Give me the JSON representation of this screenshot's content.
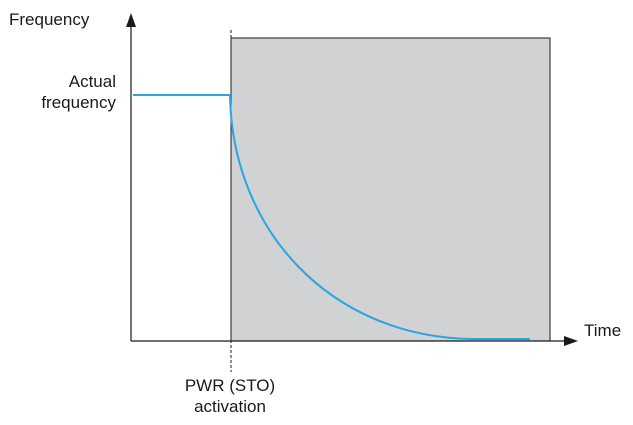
{
  "axes": {
    "y_label": "Frequency",
    "x_label": "Time"
  },
  "annotations": {
    "actual_frequency_line1": "Actual",
    "actual_frequency_line2": "frequency",
    "event_line1": "PWR (STO)",
    "event_line2": "activation"
  },
  "colors": {
    "curve": "#2aa5e0",
    "shaded_region": "#d0d2d4",
    "axis": "#1a1a1a"
  }
}
